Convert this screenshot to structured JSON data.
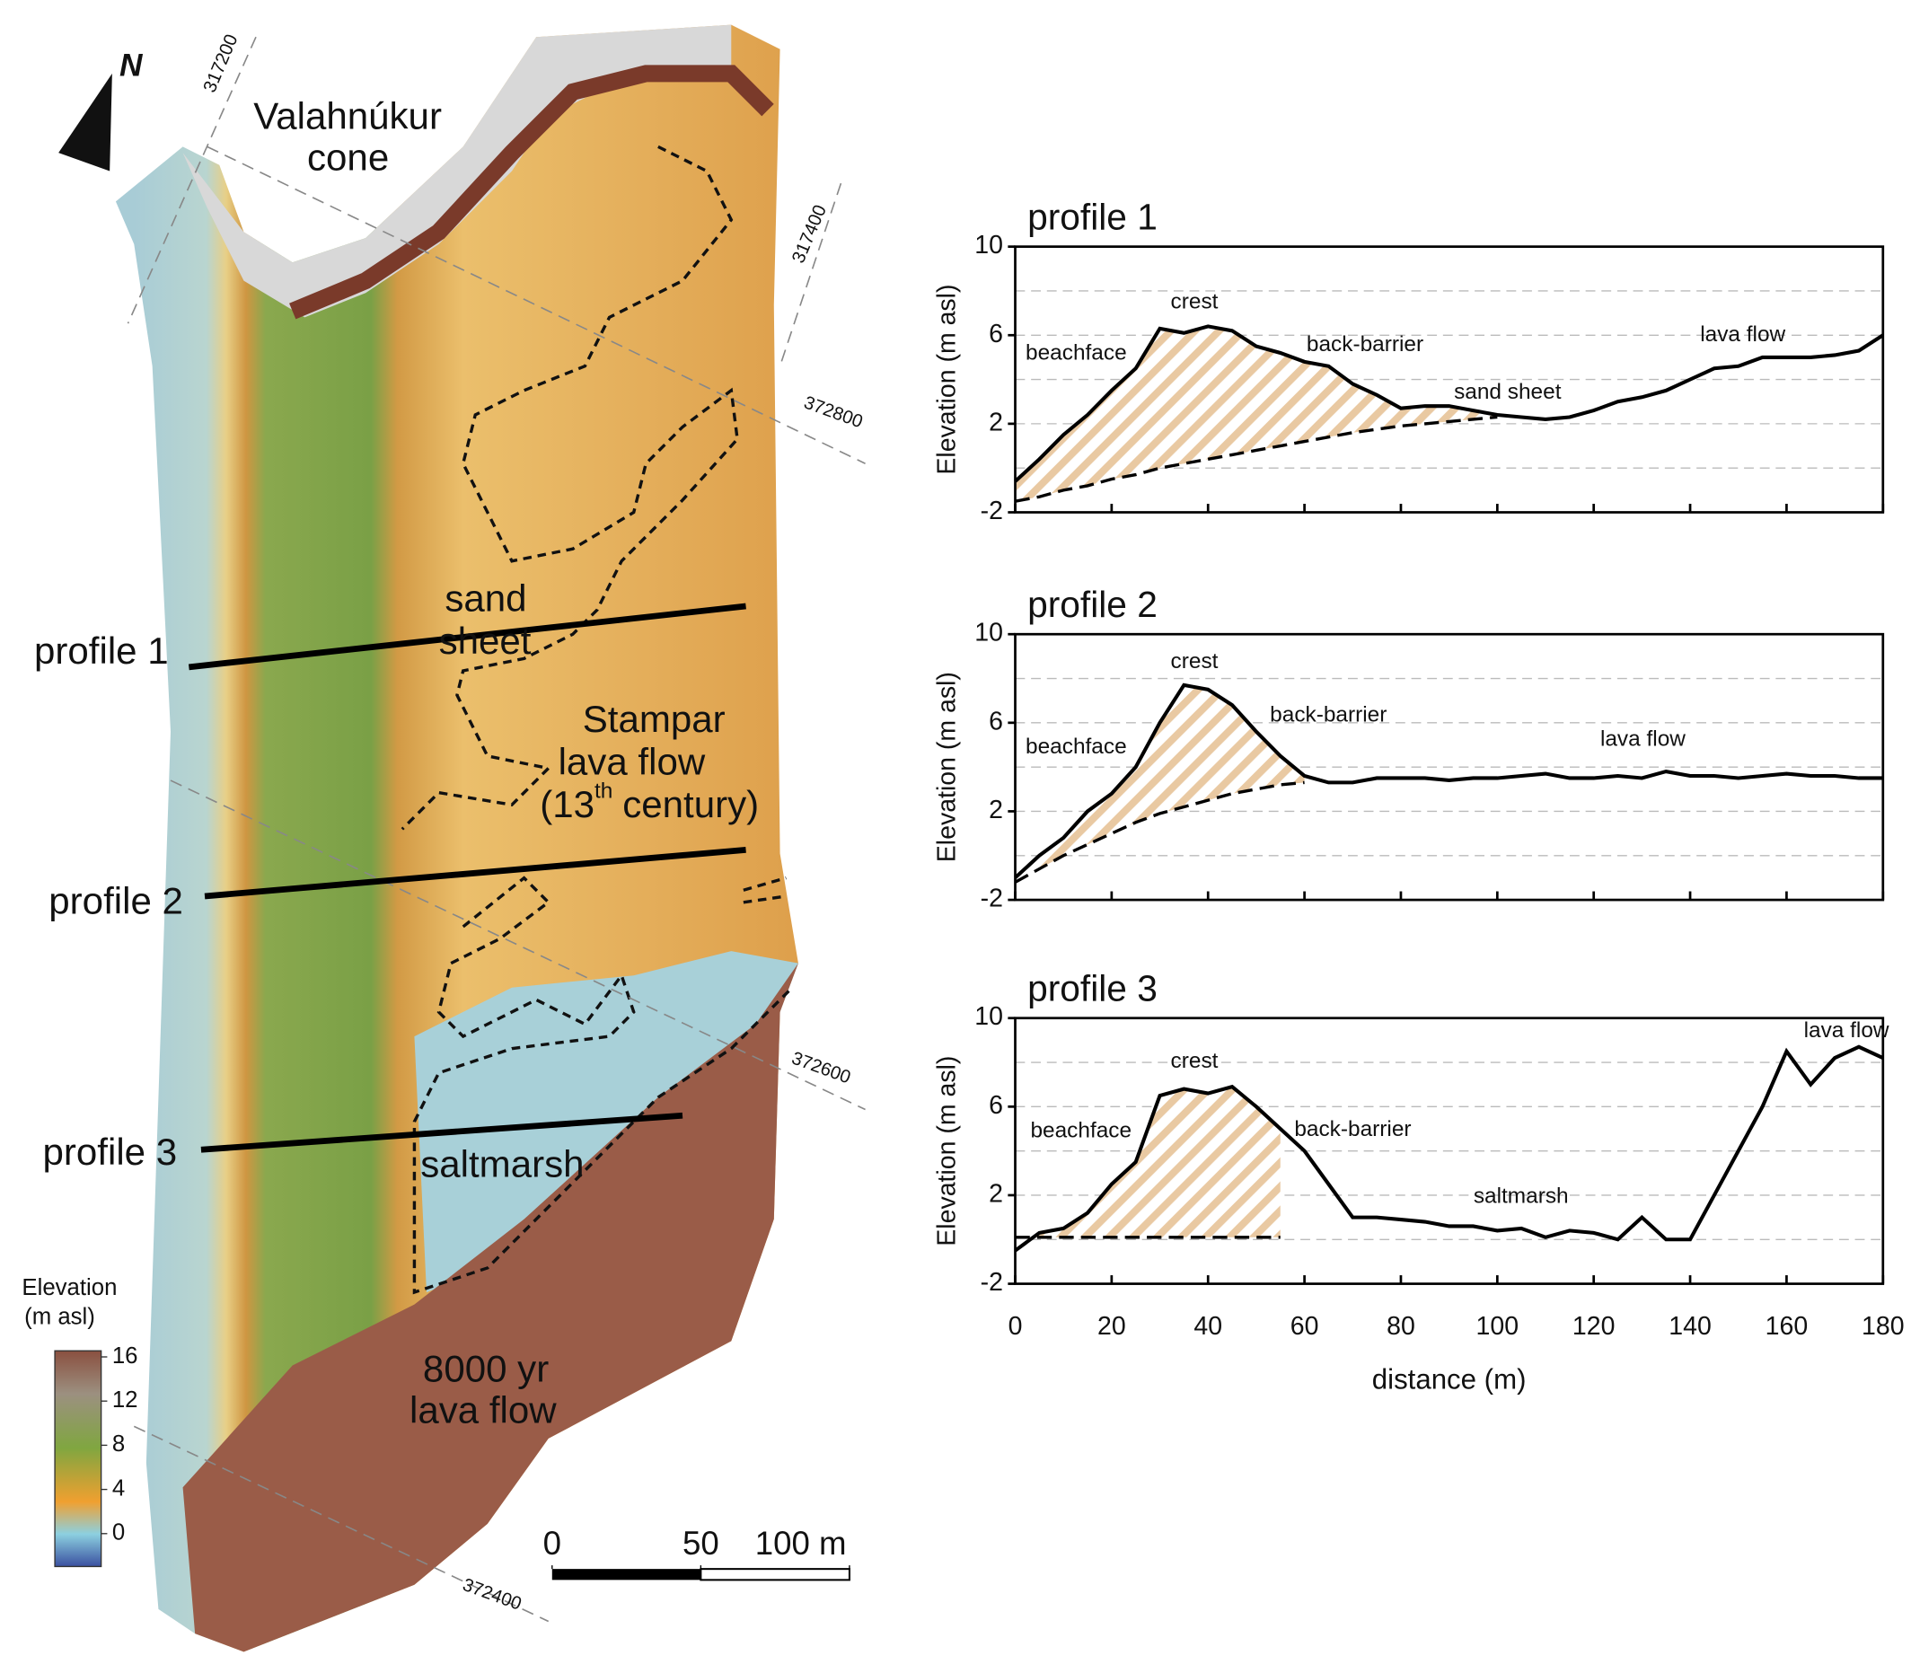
{
  "map": {
    "labels": [
      "Valahnúkur",
      "cone",
      "sand",
      "sheet",
      "Stampar",
      "lava flow",
      "(13",
      "th",
      "century)",
      "saltmarsh",
      "8000 yr",
      "lava flow"
    ],
    "profiles": [
      "profile 1",
      "profile 2",
      "profile 3"
    ],
    "north": "N",
    "grid_labels": [
      "317200",
      "317400",
      "372800",
      "372600",
      "372400"
    ],
    "colorbar": {
      "title": [
        "Elevation",
        "(m asl)"
      ],
      "ticks": [
        16,
        12,
        8,
        4,
        0
      ]
    },
    "scalebar": {
      "ticks": [
        0,
        50,
        {
          "value": 100,
          "label": "100 m"
        }
      ]
    }
  },
  "chart_data": [
    {
      "type": "line",
      "title": "profile 1",
      "y_label": "Elevation (m asl)",
      "x": [
        0,
        5,
        10,
        15,
        20,
        25,
        30,
        35,
        40,
        45,
        50,
        55,
        60,
        65,
        70,
        75,
        80,
        85,
        90,
        95,
        100,
        105,
        110,
        115,
        120,
        125,
        130,
        135,
        140,
        145,
        150,
        155,
        160,
        165,
        170,
        175,
        180
      ],
      "series": [
        {
          "color": "#000000",
          "values": [
            -0.6,
            0.4,
            1.5,
            2.4,
            3.5,
            4.5,
            6.3,
            6.1,
            6.4,
            6.2,
            5.5,
            5.2,
            4.8,
            4.6,
            3.8,
            3.3,
            2.7,
            2.8,
            2.8,
            2.6,
            2.4,
            2.3,
            2.2,
            2.3,
            2.6,
            3,
            3.2,
            3.5,
            4,
            4.5,
            4.6,
            5,
            5,
            5,
            5.1,
            5.3,
            6
          ]
        },
        {
          "color": "#000000",
          "dash": "12 6",
          "values": [
            -1.5,
            -1.3,
            -1.0,
            -0.8,
            -0.5,
            -0.3,
            0,
            0.2,
            0.4,
            0.6,
            0.8,
            1.0,
            1.2,
            1.4,
            1.6,
            1.75,
            1.9,
            2.0,
            2.1,
            2.2,
            2.3,
            null,
            null,
            null,
            null,
            null,
            null,
            null,
            null,
            null,
            null,
            null,
            null,
            null,
            null,
            null,
            null
          ]
        }
      ],
      "xlim": [
        0,
        180
      ],
      "ylim": [
        -2,
        10
      ],
      "xticks": [
        0,
        20,
        40,
        60,
        80,
        100,
        120,
        140,
        160,
        180
      ],
      "show_xtick_labels": false,
      "yticks": [
        -2,
        2,
        6,
        10
      ],
      "ygrid": [
        0,
        2,
        4,
        6,
        8
      ],
      "annotations": [
        "beachface",
        "crest",
        "back-barrier",
        "sand sheet",
        "lava flow"
      ]
    },
    {
      "type": "line",
      "title": "profile 2",
      "y_label": "Elevation (m asl)",
      "x": [
        0,
        5,
        10,
        15,
        20,
        25,
        30,
        35,
        40,
        45,
        50,
        55,
        60,
        65,
        70,
        75,
        80,
        85,
        90,
        95,
        100,
        105,
        110,
        115,
        120,
        125,
        130,
        135,
        140,
        145,
        150,
        155,
        160,
        165,
        170,
        175,
        180
      ],
      "series": [
        {
          "color": "#000000",
          "values": [
            -1,
            0,
            0.8,
            2,
            2.8,
            4,
            6,
            7.7,
            7.5,
            6.8,
            5.6,
            4.5,
            3.6,
            3.3,
            3.3,
            3.5,
            3.5,
            3.5,
            3.4,
            3.5,
            3.5,
            3.6,
            3.7,
            3.5,
            3.5,
            3.6,
            3.5,
            3.8,
            3.6,
            3.6,
            3.5,
            3.6,
            3.7,
            3.6,
            3.6,
            3.5,
            3.5
          ]
        },
        {
          "color": "#000000",
          "dash": "12 6",
          "values": [
            -1.2,
            -0.6,
            0,
            0.5,
            1.0,
            1.5,
            1.9,
            2.2,
            2.5,
            2.8,
            3.0,
            3.2,
            3.3,
            null,
            null,
            null,
            null,
            null,
            null,
            null,
            null,
            null,
            null,
            null,
            null,
            null,
            null,
            null,
            null,
            null,
            null,
            null,
            null,
            null,
            null,
            null,
            null
          ]
        }
      ],
      "xlim": [
        0,
        180
      ],
      "ylim": [
        -2,
        10
      ],
      "xticks": [
        0,
        20,
        40,
        60,
        80,
        100,
        120,
        140,
        160,
        180
      ],
      "show_xtick_labels": false,
      "yticks": [
        -2,
        2,
        6,
        10
      ],
      "ygrid": [
        0,
        2,
        4,
        6,
        8
      ],
      "annotations": [
        "beachface",
        "crest",
        "back-barrier",
        "lava flow"
      ]
    },
    {
      "type": "line",
      "title": "profile 3",
      "y_label": "Elevation (m asl)",
      "x_label": "distance (m)",
      "x": [
        0,
        5,
        10,
        15,
        20,
        25,
        30,
        35,
        40,
        45,
        50,
        55,
        60,
        65,
        70,
        75,
        80,
        85,
        90,
        95,
        100,
        105,
        110,
        115,
        120,
        125,
        130,
        135,
        140,
        145,
        150,
        155,
        160,
        165,
        170,
        175,
        180
      ],
      "series": [
        {
          "color": "#000000",
          "values": [
            -0.5,
            0.3,
            0.5,
            1.2,
            2.5,
            3.5,
            6.5,
            6.8,
            6.6,
            6.9,
            6.0,
            5.0,
            4.0,
            2.5,
            1.0,
            1.0,
            0.9,
            0.8,
            0.6,
            0.6,
            0.4,
            0.5,
            0.1,
            0.4,
            0.3,
            0,
            1,
            0,
            0,
            2,
            4,
            6,
            8.5,
            7.0,
            8.2,
            8.7,
            8.2
          ]
        },
        {
          "color": "#000000",
          "dash": "12 6",
          "values": [
            0.1,
            0.1,
            0.1,
            0.1,
            0.1,
            0.1,
            0.1,
            0.1,
            0.1,
            0.1,
            0.1,
            0.1,
            null,
            null,
            null,
            null,
            null,
            null,
            null,
            null,
            null,
            null,
            null,
            null,
            null,
            null,
            null,
            null,
            null,
            null,
            null,
            null,
            null,
            null,
            null,
            null,
            null
          ]
        }
      ],
      "xlim": [
        0,
        180
      ],
      "ylim": [
        -2,
        10
      ],
      "xticks": [
        0,
        20,
        40,
        60,
        80,
        100,
        120,
        140,
        160,
        180
      ],
      "show_xtick_labels": true,
      "yticks": [
        -2,
        2,
        6,
        10
      ],
      "ygrid": [
        0,
        2,
        4,
        6,
        8
      ],
      "annotations": [
        "beachface",
        "crest",
        "back-barrier",
        "saltmarsh",
        "lava flow"
      ]
    }
  ]
}
